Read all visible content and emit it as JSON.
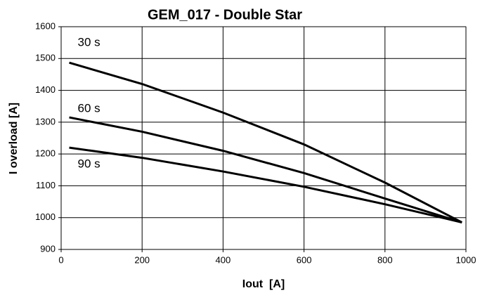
{
  "chart_data": {
    "type": "line",
    "title": "GEM_017 - Double Star",
    "x_label": "Iout  [A]",
    "y_label": "I overload [A]",
    "x": [
      20,
      200,
      400,
      600,
      800,
      990
    ],
    "series": [
      {
        "name": "30 s",
        "color": "#000000",
        "values": [
          1487,
          1420,
          1330,
          1230,
          1110,
          985
        ]
      },
      {
        "name": "60 s",
        "color": "#000000",
        "values": [
          1315,
          1270,
          1210,
          1140,
          1060,
          985
        ]
      },
      {
        "name": "90 s",
        "color": "#000000",
        "values": [
          1220,
          1188,
          1145,
          1097,
          1042,
          985
        ]
      }
    ],
    "xlim": [
      0,
      1000
    ],
    "xticks": [
      0,
      200,
      400,
      600,
      800,
      1000
    ],
    "ylim": [
      900,
      1600
    ],
    "yticks": [
      900,
      1000,
      1100,
      1200,
      1300,
      1400,
      1500,
      1600
    ],
    "grid": true
  }
}
